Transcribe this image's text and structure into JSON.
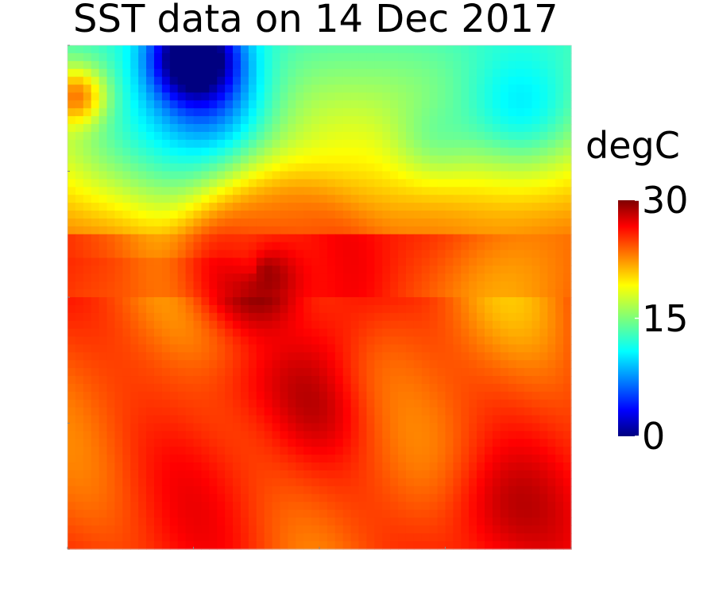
{
  "chart_data": {
    "type": "heatmap",
    "title": "SST data on 14 Dec 2017",
    "colorbar": {
      "label": "degC",
      "min": 0,
      "max": 30,
      "ticks": [
        "0",
        "15",
        "30"
      ],
      "colormap": "jet"
    },
    "grid_size": [
      64,
      64
    ],
    "features": [
      {
        "name": "cold-core",
        "x": 0.27,
        "y": 0.03,
        "value": 3
      },
      {
        "name": "warm-eddy-center",
        "x": 0.38,
        "y": 0.44,
        "value": 28.5
      },
      {
        "name": "north-west-cool-band",
        "x": 0.15,
        "y": 0.18,
        "value": 12
      },
      {
        "name": "north-east-cool-patch",
        "x": 0.88,
        "y": 0.16,
        "value": 17
      }
    ]
  }
}
